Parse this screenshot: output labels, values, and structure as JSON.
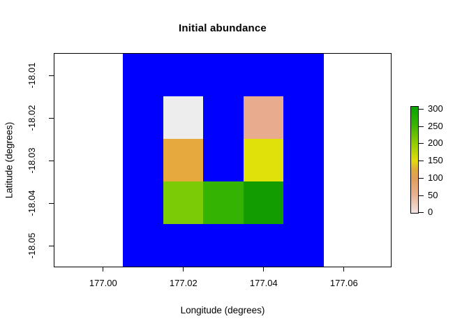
{
  "figure": {
    "title": "Initial abundance",
    "x_axis_label": "Longitude (degrees)",
    "y_axis_label": "Latitude (degrees)"
  },
  "colors": {
    "background": "#FFFFFF",
    "sea_blue": "#0000FF",
    "frame": "#000000",
    "text": "#000000"
  },
  "chart_data": {
    "type": "heatmap",
    "title": "Initial abundance",
    "xlabel": "Longitude (degrees)",
    "ylabel": "Latitude (degrees)",
    "x_ticks": [
      "177.00",
      "177.02",
      "177.04",
      "177.06"
    ],
    "y_ticks": [
      "-18.01",
      "-18.02",
      "-18.03",
      "-18.04",
      "-18.05"
    ],
    "xlim": [
      176.988,
      177.072
    ],
    "ylim": [
      -18.055,
      -18.005
    ],
    "grid": false,
    "background_region": {
      "comment_color": "#0000FF",
      "x_range": [
        177.005,
        177.055
      ],
      "y_range": [
        -18.055,
        -18.005
      ]
    },
    "cell_size_deg": 0.01,
    "cells": [
      {
        "lon": 177.02,
        "lat": -18.02,
        "value": 10,
        "color": "#EEEDED"
      },
      {
        "lon": 177.04,
        "lat": -18.02,
        "value": 60,
        "color": "#E8AB8D"
      },
      {
        "lon": 177.02,
        "lat": -18.03,
        "value": 125,
        "color": "#E5A93D"
      },
      {
        "lon": 177.04,
        "lat": -18.03,
        "value": 150,
        "color": "#E0E00B"
      },
      {
        "lon": 177.02,
        "lat": -18.04,
        "value": 210,
        "color": "#7CCB07"
      },
      {
        "lon": 177.03,
        "lat": -18.04,
        "value": 250,
        "color": "#35B303"
      },
      {
        "lon": 177.04,
        "lat": -18.04,
        "value": 285,
        "color": "#139B02"
      }
    ],
    "colorbar": {
      "position": "right",
      "ticks": [
        "300",
        "250",
        "200",
        "150",
        "100",
        "50",
        "0"
      ],
      "value_range": [
        0,
        300
      ],
      "gradient_anchors": [
        {
          "value": 0,
          "color": "#F2E3DF"
        },
        {
          "value": 50,
          "color": "#E9B391"
        },
        {
          "value": 100,
          "color": "#DF9E58"
        },
        {
          "value": 125,
          "color": "#DFAE3B"
        },
        {
          "value": 150,
          "color": "#E2DC0E"
        },
        {
          "value": 200,
          "color": "#93CC05"
        },
        {
          "value": 250,
          "color": "#3FB403"
        },
        {
          "value": 300,
          "color": "#0CA600"
        }
      ]
    }
  }
}
